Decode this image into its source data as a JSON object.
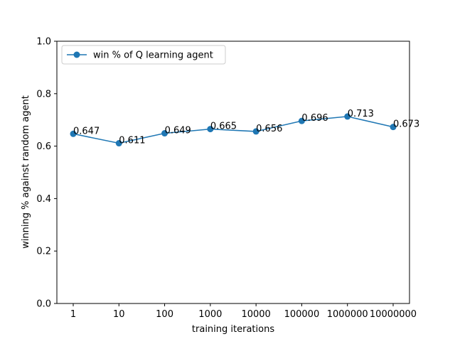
{
  "chart_data": {
    "type": "line",
    "categories": [
      "1",
      "10",
      "100",
      "1000",
      "10000",
      "100000",
      "1000000",
      "10000000"
    ],
    "series": [
      {
        "name": "win % of Q learning agent",
        "values": [
          0.647,
          0.611,
          0.649,
          0.665,
          0.656,
          0.696,
          0.713,
          0.673
        ],
        "data_labels": [
          "0.647",
          "0.611",
          "0.649",
          "0.665",
          "0.656",
          "0.696",
          "0.713",
          "0.673"
        ],
        "color": "#1f77b4",
        "marker": "circle"
      }
    ],
    "xlabel": "training iterations",
    "ylabel": "winning % against random agent",
    "ylim": [
      0.0,
      1.0
    ],
    "yticks": [
      "0.0",
      "0.2",
      "0.4",
      "0.6",
      "0.8",
      "1.0"
    ],
    "ytick_values": [
      0.0,
      0.2,
      0.4,
      0.6,
      0.8,
      1.0
    ],
    "grid": false,
    "legend_position": "top-left"
  }
}
